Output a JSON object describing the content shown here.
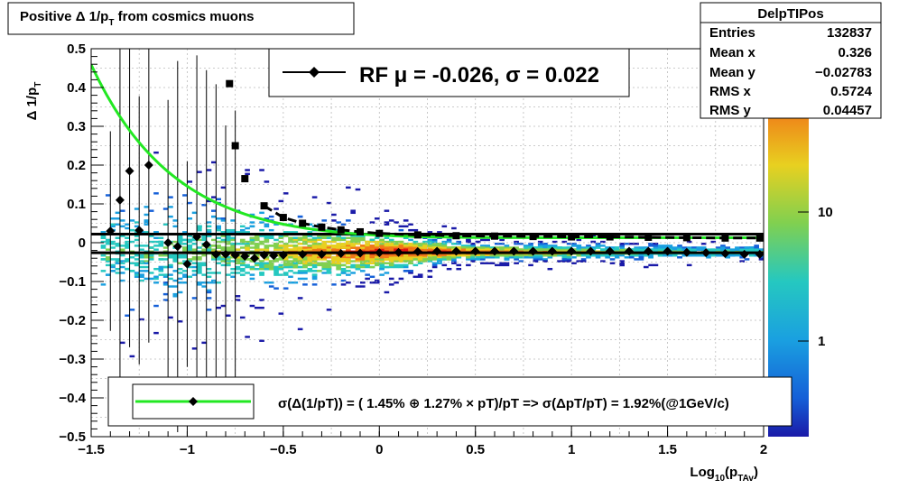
{
  "title_box": {
    "prefix": "Positive ",
    "delta": "Δ",
    "rest": " 1/p",
    "sub": "T",
    "suffix": " from cosmics muons"
  },
  "stats_box": {
    "name": "DelpTIPos",
    "rows": [
      {
        "label": "Entries",
        "value": "132837"
      },
      {
        "label": "Mean x",
        "value": "0.326"
      },
      {
        "label": "Mean y",
        "value": "−0.02783"
      },
      {
        "label": "RMS x",
        "value": "0.5724"
      },
      {
        "label": "RMS y",
        "value": "0.04457"
      }
    ]
  },
  "fit_box": {
    "text": "RF μ = -0.026, σ =   0.022"
  },
  "resolution_legend": {
    "text": "σ(Δ(1/pT)) = ( 1.45% ⊕  1.27% × pT)/pT => σ(ΔpT/pT) =  1.92%(@1GeV/c)"
  },
  "chart_data": {
    "type": "heatmap",
    "title": "Positive Δ 1/p_T from cosmics muons",
    "xlabel": "Log10(p_TAv)",
    "ylabel": "Δ 1/p_T",
    "xlim": [
      -1.5,
      2
    ],
    "ylim": [
      -0.5,
      0.5
    ],
    "x_ticks": [
      "−1.5",
      "−1",
      "−0.5",
      "0",
      "0.5",
      "1",
      "1.5",
      "2"
    ],
    "y_ticks": [
      "−0.5",
      "−0.4",
      "−0.3",
      "−0.2",
      "−0.1",
      "0",
      "0.1",
      "0.2",
      "0.3",
      "0.4",
      "0.5"
    ],
    "grid": true,
    "z_log": true,
    "z_ticks": [
      "1",
      "10"
    ],
    "mean_points": [
      {
        "x": -1.4,
        "y": 0.03
      },
      {
        "x": -1.35,
        "y": 0.11
      },
      {
        "x": -1.3,
        "y": 0.185
      },
      {
        "x": -1.25,
        "y": 0.032
      },
      {
        "x": -1.2,
        "y": 0.2
      },
      {
        "x": -1.1,
        "y": 0.0
      },
      {
        "x": -1.05,
        "y": -0.01
      },
      {
        "x": -1.0,
        "y": -0.055
      },
      {
        "x": -0.95,
        "y": 0.015
      },
      {
        "x": -0.9,
        "y": -0.005
      },
      {
        "x": -0.85,
        "y": -0.03
      },
      {
        "x": -0.8,
        "y": -0.03
      },
      {
        "x": -0.75,
        "y": -0.032
      },
      {
        "x": -0.7,
        "y": -0.035
      },
      {
        "x": -0.65,
        "y": -0.04
      },
      {
        "x": -0.6,
        "y": -0.032
      },
      {
        "x": -0.55,
        "y": -0.033
      },
      {
        "x": -0.5,
        "y": -0.032
      },
      {
        "x": -0.4,
        "y": -0.03
      },
      {
        "x": -0.3,
        "y": -0.03
      },
      {
        "x": -0.2,
        "y": -0.028
      },
      {
        "x": -0.1,
        "y": -0.027
      },
      {
        "x": 0.0,
        "y": -0.026
      },
      {
        "x": 0.1,
        "y": -0.025
      },
      {
        "x": 0.2,
        "y": -0.023
      },
      {
        "x": 0.3,
        "y": -0.022
      },
      {
        "x": 0.4,
        "y": -0.022
      },
      {
        "x": 0.5,
        "y": -0.022
      },
      {
        "x": 0.6,
        "y": -0.022
      },
      {
        "x": 0.7,
        "y": -0.022
      },
      {
        "x": 0.8,
        "y": -0.022
      },
      {
        "x": 0.9,
        "y": -0.022
      },
      {
        "x": 1.0,
        "y": -0.022
      },
      {
        "x": 1.1,
        "y": -0.022
      },
      {
        "x": 1.2,
        "y": -0.022
      },
      {
        "x": 1.3,
        "y": -0.022
      },
      {
        "x": 1.4,
        "y": -0.022
      },
      {
        "x": 1.5,
        "y": -0.022
      },
      {
        "x": 1.6,
        "y": -0.025
      },
      {
        "x": 1.7,
        "y": -0.026
      },
      {
        "x": 1.8,
        "y": -0.028
      },
      {
        "x": 1.9,
        "y": -0.03
      },
      {
        "x": 1.98,
        "y": -0.03
      }
    ],
    "sigma_points": [
      {
        "x": -0.78,
        "y": 0.41
      },
      {
        "x": -0.75,
        "y": 0.25
      },
      {
        "x": -0.7,
        "y": 0.165
      },
      {
        "x": -0.6,
        "y": 0.095
      },
      {
        "x": -0.5,
        "y": 0.065
      },
      {
        "x": -0.4,
        "y": 0.05
      },
      {
        "x": -0.3,
        "y": 0.04
      },
      {
        "x": -0.2,
        "y": 0.033
      },
      {
        "x": -0.1,
        "y": 0.028
      },
      {
        "x": 0.0,
        "y": 0.024
      },
      {
        "x": 0.2,
        "y": 0.02
      },
      {
        "x": 0.4,
        "y": 0.018
      },
      {
        "x": 0.6,
        "y": 0.017
      },
      {
        "x": 0.8,
        "y": 0.016
      },
      {
        "x": 1.0,
        "y": 0.015
      },
      {
        "x": 1.2,
        "y": 0.015
      },
      {
        "x": 1.4,
        "y": 0.014
      },
      {
        "x": 1.6,
        "y": 0.013
      },
      {
        "x": 1.8,
        "y": 0.012
      },
      {
        "x": 1.98,
        "y": 0.012
      }
    ],
    "fit_lines": {
      "mu": -0.026,
      "mu_plus_sigma": 0.022
    },
    "resolution_curve": {
      "a_percent": 1.45,
      "b_percent": 1.27
    }
  },
  "colors": {
    "fit_curve": "#22e822",
    "markers": "#000000",
    "frame": "#000000"
  }
}
